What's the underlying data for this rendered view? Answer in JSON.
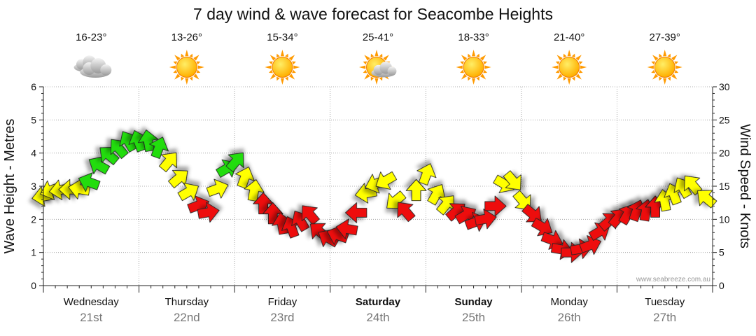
{
  "chart_data": {
    "type": "line",
    "title": "7 day wind & wave forecast for Seacombe Heights",
    "ylabel_left": "Wave Height - Metres",
    "ylabel_right": "Wind Speed - Knots",
    "ylim_left": [
      0,
      6
    ],
    "ylim_right": [
      0,
      30
    ],
    "yticks_left": [
      "0",
      "1",
      "2",
      "3",
      "4",
      "5",
      "6"
    ],
    "yticks_right": [
      "0",
      "5",
      "10",
      "15",
      "20",
      "25",
      "30"
    ],
    "grid": "dotted",
    "watermark": "www.seabreeze.com.au",
    "days": [
      {
        "name": "Wednesday",
        "date": "21st",
        "bold": false,
        "temp": "16-23°",
        "icon": "cloud-icon"
      },
      {
        "name": "Thursday",
        "date": "22nd",
        "bold": false,
        "temp": "13-26°",
        "icon": "sun-icon"
      },
      {
        "name": "Friday",
        "date": "23rd",
        "bold": false,
        "temp": "15-34°",
        "icon": "sun-icon"
      },
      {
        "name": "Saturday",
        "date": "24th",
        "bold": true,
        "temp": "25-41°",
        "icon": "sun-cloud-icon"
      },
      {
        "name": "Sunday",
        "date": "25th",
        "bold": true,
        "temp": "18-33°",
        "icon": "sun-icon"
      },
      {
        "name": "Monday",
        "date": "26th",
        "bold": false,
        "temp": "21-40°",
        "icon": "sun-icon"
      },
      {
        "name": "Tuesday",
        "date": "27th",
        "bold": false,
        "temp": "27-39°",
        "icon": "sun-icon"
      }
    ],
    "colors": {
      "green": "#22dd11",
      "yellow": "#ffff00",
      "red": "#ee1111"
    },
    "series": [
      {
        "name": "Wind Speed",
        "unit": "knots",
        "x_days": [
          0.02,
          0.1,
          0.2,
          0.3,
          0.4,
          0.5,
          0.6,
          0.7,
          0.8,
          0.9,
          1.0,
          1.1,
          1.2,
          1.3,
          1.4,
          1.5,
          1.6,
          1.7,
          1.8,
          1.9,
          2.0,
          2.1,
          2.2,
          2.3,
          2.4,
          2.5,
          2.6,
          2.7,
          2.8,
          2.9,
          3.0,
          3.1,
          3.2,
          3.3,
          3.4,
          3.5,
          3.6,
          3.7,
          3.8,
          3.9,
          4.0,
          4.1,
          4.2,
          4.3,
          4.4,
          4.5,
          4.6,
          4.7,
          4.8,
          4.9,
          5.0,
          5.1,
          5.2,
          5.3,
          5.4,
          5.5,
          5.6,
          5.7,
          5.8,
          5.9,
          6.0,
          6.1,
          6.2,
          6.3,
          6.4,
          6.5,
          6.6,
          6.7,
          6.8,
          6.95
        ],
        "values": [
          13.5,
          14.5,
          14.5,
          14.5,
          14.5,
          15.5,
          18.0,
          19.5,
          20.5,
          21.5,
          21.5,
          21.5,
          20.5,
          18.5,
          16.0,
          14.0,
          12.0,
          11.0,
          14.5,
          17.5,
          18.5,
          16.0,
          14.0,
          12.0,
          10.5,
          9.0,
          8.5,
          9.5,
          10.5,
          8.0,
          7.0,
          7.5,
          8.5,
          11.0,
          14.0,
          15.5,
          16.0,
          13.0,
          11.0,
          14.0,
          16.5,
          13.5,
          12.0,
          11.0,
          10.5,
          9.5,
          10.0,
          12.0,
          15.5,
          16.0,
          13.0,
          11.0,
          9.0,
          7.0,
          5.5,
          5.0,
          5.5,
          6.0,
          8.0,
          9.5,
          10.0,
          10.5,
          11.0,
          11.0,
          11.5,
          12.5,
          13.5,
          14.5,
          15.0,
          13.0
        ],
        "dirs": [
          80,
          70,
          80,
          90,
          100,
          110,
          120,
          130,
          140,
          150,
          160,
          170,
          200,
          220,
          230,
          240,
          250,
          260,
          250,
          240,
          220,
          200,
          190,
          180,
          180,
          170,
          160,
          150,
          140,
          130,
          120,
          110,
          100,
          90,
          80,
          70,
          60,
          50,
          140,
          180,
          200,
          210,
          220,
          230,
          240,
          250,
          260,
          270,
          300,
          320,
          320,
          310,
          300,
          290,
          280,
          270,
          260,
          250,
          240,
          230,
          220,
          210,
          200,
          190,
          180,
          170,
          160,
          150,
          140,
          130
        ],
        "colors": [
          "yellow",
          "yellow",
          "yellow",
          "yellow",
          "yellow",
          "green",
          "green",
          "green",
          "green",
          "green",
          "green",
          "green",
          "green",
          "yellow",
          "yellow",
          "yellow",
          "red",
          "red",
          "yellow",
          "green",
          "green",
          "yellow",
          "yellow",
          "red",
          "red",
          "red",
          "red",
          "red",
          "red",
          "red",
          "red",
          "red",
          "red",
          "red",
          "yellow",
          "yellow",
          "yellow",
          "yellow",
          "red",
          "yellow",
          "yellow",
          "yellow",
          "yellow",
          "red",
          "red",
          "red",
          "red",
          "red",
          "yellow",
          "yellow",
          "yellow",
          "red",
          "red",
          "red",
          "red",
          "red",
          "red",
          "red",
          "red",
          "red",
          "red",
          "red",
          "red",
          "red",
          "red",
          "yellow",
          "yellow",
          "yellow",
          "yellow",
          "yellow"
        ]
      }
    ]
  }
}
